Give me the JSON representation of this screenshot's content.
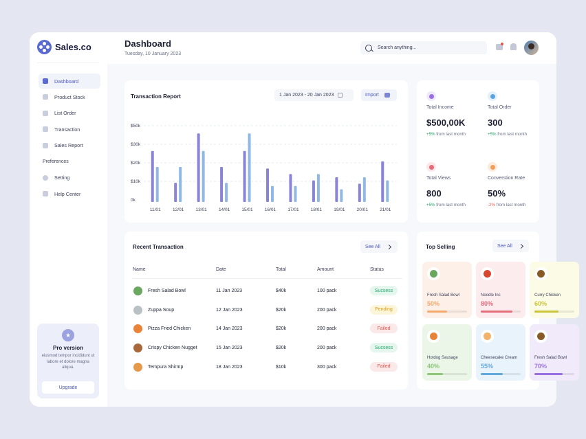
{
  "brand": {
    "name": "Sales.co"
  },
  "sidebar": {
    "items": [
      {
        "label": "Dashboard",
        "icon": "grid-icon",
        "active": true
      },
      {
        "label": "Product Stock",
        "icon": "box-icon",
        "active": false
      },
      {
        "label": "List Order",
        "icon": "list-icon",
        "active": false
      },
      {
        "label": "Transaction",
        "icon": "wallet-icon",
        "active": false
      },
      {
        "label": "Sales Report",
        "icon": "bar-chart-icon",
        "active": false
      }
    ],
    "section_label": "Preferences",
    "pref_items": [
      {
        "label": "Setting",
        "icon": "gear-icon"
      },
      {
        "label": "Help Center",
        "icon": "help-icon"
      }
    ],
    "pro": {
      "title": "Pro version",
      "description": "eiusmod tempor incididunt ut labore et dolore magna aliqua.",
      "button": "Upgrade"
    }
  },
  "header": {
    "title": "Dashboard",
    "date": "Tuesday, 10 January 2023",
    "search_placeholder": "Search anything..."
  },
  "transaction_report": {
    "title": "Transaction Report",
    "date_range": "1 Jan 2023 -  20 Jan 2023",
    "import_label": "Import"
  },
  "chart_data": {
    "type": "bar",
    "categories": [
      "11/01",
      "12/01",
      "13/01",
      "14/01",
      "15/01",
      "16/01",
      "17/01",
      "18/01",
      "19/01",
      "20/01",
      "21/01"
    ],
    "series": [
      {
        "values": [
          32,
          12,
          43,
          22,
          32,
          21,
          17.5,
          13.5,
          15.5,
          11.5,
          25.5
        ]
      },
      {
        "values": [
          22,
          22,
          32,
          12,
          43,
          10,
          10,
          17.5,
          8,
          15.5,
          13.5
        ]
      }
    ],
    "series_colors": [
      "#8a84d6",
      "#91b8e2"
    ],
    "y_ticks": [
      "$50k",
      "$30k",
      "$20k",
      "$10k",
      "0k"
    ],
    "ylim": [
      0,
      50
    ],
    "grid": true
  },
  "stats": [
    {
      "label": "Total Income",
      "value": "$500,00K",
      "delta": "+5%",
      "delta_text": " from last month",
      "icon": "dollar-icon",
      "icon_bg": "#efe8fb",
      "icon_color": "#9a70e0",
      "negative": false
    },
    {
      "label": "Total Order",
      "value": "300",
      "delta": "+5%",
      "delta_text": " from last month",
      "icon": "truck-icon",
      "icon_bg": "#e4f1fb",
      "icon_color": "#5ba3dc",
      "negative": false
    },
    {
      "label": "Total  Views",
      "value": "800",
      "delta": "+5%",
      "delta_text": " from last month",
      "icon": "eye-icon",
      "icon_bg": "#fbe6e8",
      "icon_color": "#e36b7a",
      "negative": false
    },
    {
      "label": "Converstion Rate",
      "value": "50%",
      "delta": "-2%",
      "delta_text": " from last month",
      "icon": "percent-icon",
      "icon_bg": "#fdebdc",
      "icon_color": "#f0a05c",
      "negative": true
    }
  ],
  "recent_transactions": {
    "title": "Recent Transaction",
    "see_all": "See All",
    "columns": [
      "Name",
      "Date",
      "Total",
      "Amount",
      "Status"
    ],
    "rows": [
      {
        "name": "Fresh Salad Bowl",
        "date": "11 Jan 2023",
        "total": "$40k",
        "amount": "100 pack",
        "status": "Sucsess",
        "icon_color": "#6aa860"
      },
      {
        "name": "Zuppa Soup",
        "date": "12 Jan 2023",
        "total": "$20k",
        "amount": "200 pack",
        "status": "Pending",
        "icon_color": "#b9c1c4"
      },
      {
        "name": "Pizza Fried Chicken",
        "date": "14 Jan 2023",
        "total": "$20k",
        "amount": "200 pack",
        "status": "Failed",
        "icon_color": "#e8843a"
      },
      {
        "name": "Crispy Chicken Nugget",
        "date": "15 Jan 2023",
        "total": "$20k",
        "amount": "200 pack",
        "status": "Sucsess",
        "icon_color": "#a8683a"
      },
      {
        "name": "Tempura Shirmp",
        "date": "18 Jan 2023",
        "total": "$10k",
        "amount": "300 pack",
        "status": "Failed",
        "icon_color": "#e49a4a"
      }
    ],
    "status_colors": {
      "Sucsess": {
        "bg": "#e5f6ee",
        "fg": "#23a86a"
      },
      "Pending": {
        "bg": "#fdf5da",
        "fg": "#d8a21c"
      },
      "Failed": {
        "bg": "#fbe8e8",
        "fg": "#e2574c"
      }
    }
  },
  "top_selling": {
    "title": "Top Selling",
    "see_all": "See All",
    "items": [
      {
        "name": "Fresh Salad Bowl",
        "percent": "50%",
        "value": 50,
        "bg": "#fdf0e8",
        "color": "#f2a96b",
        "icon_color": "#6aa860"
      },
      {
        "name": "Noodle Inc",
        "percent": "80%",
        "value": 80,
        "bg": "#fdecee",
        "color": "#e36b7a",
        "icon_color": "#d7462f"
      },
      {
        "name": "Curry Chicken",
        "percent": "60%",
        "value": 60,
        "bg": "#fbfbe6",
        "color": "#c9c437",
        "icon_color": "#8a5a26"
      },
      {
        "name": "Hotdog Sausage",
        "percent": "40%",
        "value": 40,
        "bg": "#ebf6e8",
        "color": "#8cc77a",
        "icon_color": "#e8843a"
      },
      {
        "name": "Cheesecake Cream",
        "percent": "55%",
        "value": 55,
        "bg": "#e8f3fb",
        "color": "#63a8dd",
        "icon_color": "#f2b26b"
      },
      {
        "name": "Fresh Salad Bowl",
        "percent": "70%",
        "value": 70,
        "bg": "#f1eafb",
        "color": "#9a70e0",
        "icon_color": "#8a5a26"
      }
    ]
  }
}
